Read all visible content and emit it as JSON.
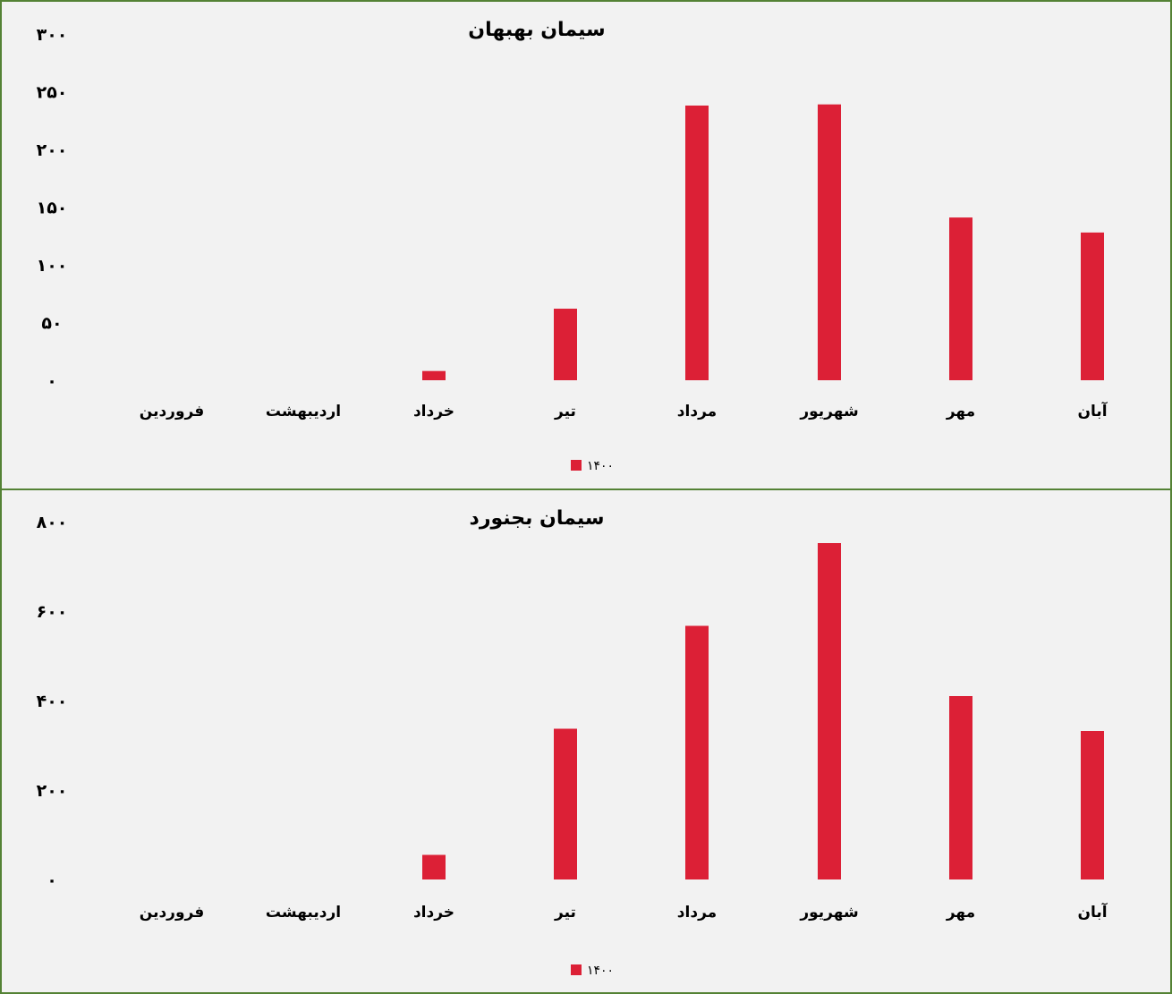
{
  "colors": {
    "bar": "#dc2036",
    "border": "#548235",
    "background": "#f2f2f2"
  },
  "chart_data": [
    {
      "type": "bar",
      "title": "سیمان بهبهان",
      "categories": [
        "فروردین",
        "اردیبهشت",
        "خرداد",
        "تیر",
        "مرداد",
        "شهریور",
        "مهر",
        "آبان"
      ],
      "series": [
        {
          "name": "۱۴۰۰",
          "values": [
            0,
            0,
            8,
            62,
            238,
            239,
            141,
            128
          ]
        }
      ],
      "ylim": [
        0,
        300
      ],
      "yticks": [
        0,
        50,
        100,
        150,
        200,
        250,
        300
      ],
      "ytick_labels": [
        "۰",
        "۵۰",
        "۱۰۰",
        "۱۵۰",
        "۲۰۰",
        "۲۵۰",
        "۳۰۰"
      ],
      "grid": false,
      "legend": "bottom-center"
    },
    {
      "type": "bar",
      "title": "سیمان بجنورد",
      "categories": [
        "فروردین",
        "اردیبهشت",
        "خرداد",
        "تیر",
        "مرداد",
        "شهریور",
        "مهر",
        "آبان"
      ],
      "series": [
        {
          "name": "۱۴۰۰",
          "values": [
            0,
            0,
            55,
            337,
            567,
            752,
            410,
            332
          ]
        }
      ],
      "ylim": [
        0,
        800
      ],
      "yticks": [
        0,
        200,
        400,
        600,
        800
      ],
      "ytick_labels": [
        "۰",
        "۲۰۰",
        "۴۰۰",
        "۶۰۰",
        "۸۰۰"
      ],
      "grid": false,
      "legend": "bottom-center"
    }
  ]
}
